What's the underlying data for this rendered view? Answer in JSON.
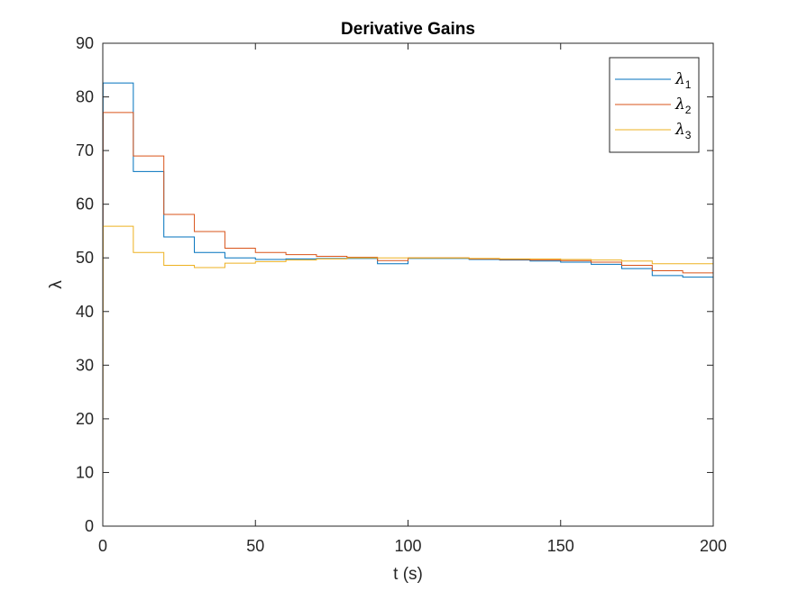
{
  "chart_data": {
    "type": "line",
    "step": true,
    "title": "Derivative Gains",
    "xlabel": "t (s)",
    "ylabel": "λ",
    "xlim": [
      0,
      200
    ],
    "ylim": [
      0,
      90
    ],
    "xticks": [
      0,
      50,
      100,
      150,
      200
    ],
    "yticks": [
      0,
      10,
      20,
      30,
      40,
      50,
      60,
      70,
      80,
      90
    ],
    "grid": false,
    "legend_position": "top-right",
    "series": [
      {
        "name": "λ1",
        "legend_base": "λ",
        "legend_sub": "1",
        "color": "#0072BD",
        "x": [
          0,
          0.1,
          10,
          10,
          20,
          20,
          30,
          30,
          40,
          40,
          50,
          50,
          60,
          60,
          70,
          70,
          80,
          80,
          90,
          90,
          100,
          100,
          110,
          110,
          120,
          120,
          130,
          130,
          140,
          140,
          150,
          150,
          160,
          160,
          170,
          170,
          180,
          180,
          190,
          190,
          200
        ],
        "y": [
          0,
          82.6,
          82.6,
          66.1,
          66.1,
          53.9,
          53.9,
          51.0,
          51.0,
          50.0,
          50.0,
          49.7,
          49.7,
          49.8,
          49.8,
          49.9,
          49.9,
          49.9,
          49.9,
          48.9,
          48.9,
          49.9,
          49.9,
          49.9,
          49.9,
          49.7,
          49.7,
          49.6,
          49.6,
          49.4,
          49.4,
          49.2,
          49.2,
          48.8,
          48.8,
          48.0,
          48.0,
          46.7,
          46.7,
          46.4,
          46.4
        ]
      },
      {
        "name": "λ2",
        "legend_base": "λ",
        "legend_sub": "2",
        "color": "#D95319",
        "x": [
          0,
          0.1,
          10,
          10,
          20,
          20,
          30,
          30,
          40,
          40,
          50,
          50,
          60,
          60,
          70,
          70,
          80,
          80,
          90,
          90,
          100,
          100,
          110,
          110,
          120,
          120,
          130,
          130,
          140,
          140,
          150,
          150,
          160,
          160,
          170,
          170,
          180,
          180,
          190,
          190,
          200
        ],
        "y": [
          0,
          77.1,
          77.1,
          69.0,
          69.0,
          58.1,
          58.1,
          54.9,
          54.9,
          51.8,
          51.8,
          51.0,
          51.0,
          50.6,
          50.6,
          50.3,
          50.3,
          50.1,
          50.1,
          49.5,
          49.5,
          50.0,
          50.0,
          50.0,
          50.0,
          49.8,
          49.8,
          49.7,
          49.7,
          49.6,
          49.6,
          49.5,
          49.5,
          49.2,
          49.2,
          48.6,
          48.6,
          47.6,
          47.6,
          47.2,
          47.2
        ]
      },
      {
        "name": "λ3",
        "legend_base": "λ",
        "legend_sub": "3",
        "color": "#EDB120",
        "x": [
          0,
          0.1,
          10,
          10,
          20,
          20,
          30,
          30,
          40,
          40,
          50,
          50,
          60,
          60,
          70,
          70,
          80,
          80,
          90,
          90,
          100,
          100,
          110,
          110,
          120,
          120,
          130,
          130,
          140,
          140,
          150,
          150,
          160,
          160,
          170,
          170,
          180,
          180,
          190,
          190,
          200
        ],
        "y": [
          0,
          55.9,
          55.9,
          51.0,
          51.0,
          48.6,
          48.6,
          48.2,
          48.2,
          49.0,
          49.0,
          49.3,
          49.3,
          49.6,
          49.6,
          49.8,
          49.8,
          50.0,
          50.0,
          50.0,
          50.0,
          50.0,
          50.0,
          50.0,
          50.0,
          49.9,
          49.9,
          49.8,
          49.8,
          49.8,
          49.8,
          49.7,
          49.7,
          49.6,
          49.6,
          49.4,
          49.4,
          48.9,
          48.9,
          48.9,
          48.9
        ]
      }
    ]
  }
}
